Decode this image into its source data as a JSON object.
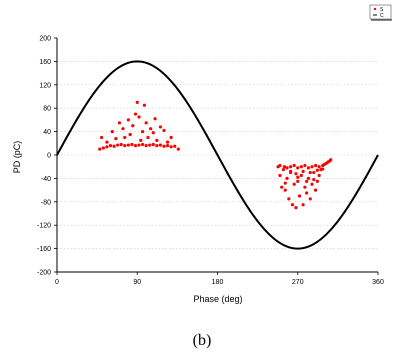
{
  "chart_data": {
    "type": "scatter",
    "xlabel": "Phase (deg)",
    "ylabel": "PD (pC)",
    "xlim": [
      0,
      360
    ],
    "ylim": [
      -200,
      200
    ],
    "x_ticks": [
      "0",
      "90",
      "180",
      "270",
      "360"
    ],
    "y_ticks": [
      "-200",
      "-160",
      "-120",
      "-80",
      "-40",
      "0",
      "40",
      "80",
      "120",
      "160",
      "200"
    ],
    "grid": "dotted horizontal",
    "legend": {
      "placement": "top-right",
      "entries": [
        "S",
        "C"
      ]
    },
    "caption": "(b)",
    "colors": {
      "points": "#ff0000",
      "curve": "#000000"
    },
    "series": [
      {
        "name": "S",
        "kind": "scatter",
        "points": [
          [
            48,
            10
          ],
          [
            52,
            12
          ],
          [
            56,
            14
          ],
          [
            60,
            16
          ],
          [
            64,
            15
          ],
          [
            68,
            17
          ],
          [
            72,
            18
          ],
          [
            76,
            16
          ],
          [
            80,
            17
          ],
          [
            84,
            18
          ],
          [
            88,
            16
          ],
          [
            92,
            17
          ],
          [
            96,
            18
          ],
          [
            100,
            16
          ],
          [
            104,
            17
          ],
          [
            108,
            18
          ],
          [
            112,
            16
          ],
          [
            116,
            17
          ],
          [
            120,
            15
          ],
          [
            124,
            16
          ],
          [
            128,
            14
          ],
          [
            132,
            15
          ],
          [
            136,
            10
          ],
          [
            50,
            30
          ],
          [
            56,
            22
          ],
          [
            62,
            40
          ],
          [
            66,
            28
          ],
          [
            70,
            55
          ],
          [
            74,
            45
          ],
          [
            76,
            30
          ],
          [
            80,
            60
          ],
          [
            82,
            35
          ],
          [
            85,
            50
          ],
          [
            88,
            70
          ],
          [
            90,
            90
          ],
          [
            92,
            65
          ],
          [
            94,
            25
          ],
          [
            96,
            40
          ],
          [
            98,
            85
          ],
          [
            100,
            55
          ],
          [
            102,
            30
          ],
          [
            105,
            45
          ],
          [
            108,
            38
          ],
          [
            110,
            62
          ],
          [
            112,
            25
          ],
          [
            116,
            48
          ],
          [
            120,
            42
          ],
          [
            124,
            22
          ],
          [
            128,
            30
          ],
          [
            248,
            -20
          ],
          [
            250,
            -35
          ],
          [
            252,
            -55
          ],
          [
            254,
            -25
          ],
          [
            256,
            -60
          ],
          [
            258,
            -40
          ],
          [
            260,
            -75
          ],
          [
            262,
            -30
          ],
          [
            264,
            -85
          ],
          [
            266,
            -50
          ],
          [
            268,
            -90
          ],
          [
            270,
            -45
          ],
          [
            272,
            -70
          ],
          [
            274,
            -35
          ],
          [
            276,
            -85
          ],
          [
            278,
            -55
          ],
          [
            280,
            -65
          ],
          [
            282,
            -40
          ],
          [
            284,
            -75
          ],
          [
            286,
            -50
          ],
          [
            288,
            -30
          ],
          [
            290,
            -60
          ],
          [
            292,
            -45
          ],
          [
            294,
            -35
          ],
          [
            296,
            -25
          ],
          [
            250,
            -18
          ],
          [
            255,
            -20
          ],
          [
            258,
            -22
          ],
          [
            262,
            -20
          ],
          [
            266,
            -18
          ],
          [
            270,
            -22
          ],
          [
            274,
            -20
          ],
          [
            278,
            -18
          ],
          [
            282,
            -22
          ],
          [
            286,
            -20
          ],
          [
            290,
            -18
          ],
          [
            294,
            -20
          ],
          [
            298,
            -18
          ],
          [
            300,
            -16
          ],
          [
            302,
            -14
          ],
          [
            304,
            -12
          ],
          [
            306,
            -10
          ],
          [
            307,
            -8
          ],
          [
            262,
            -28
          ],
          [
            268,
            -32
          ],
          [
            276,
            -28
          ],
          [
            284,
            -30
          ],
          [
            292,
            -26
          ],
          [
            298,
            -24
          ],
          [
            270,
            -38
          ],
          [
            280,
            -45
          ],
          [
            256,
            -48
          ],
          [
            288,
            -42
          ]
        ]
      },
      {
        "name": "C",
        "kind": "line",
        "function": "160*sin(x)"
      }
    ]
  }
}
